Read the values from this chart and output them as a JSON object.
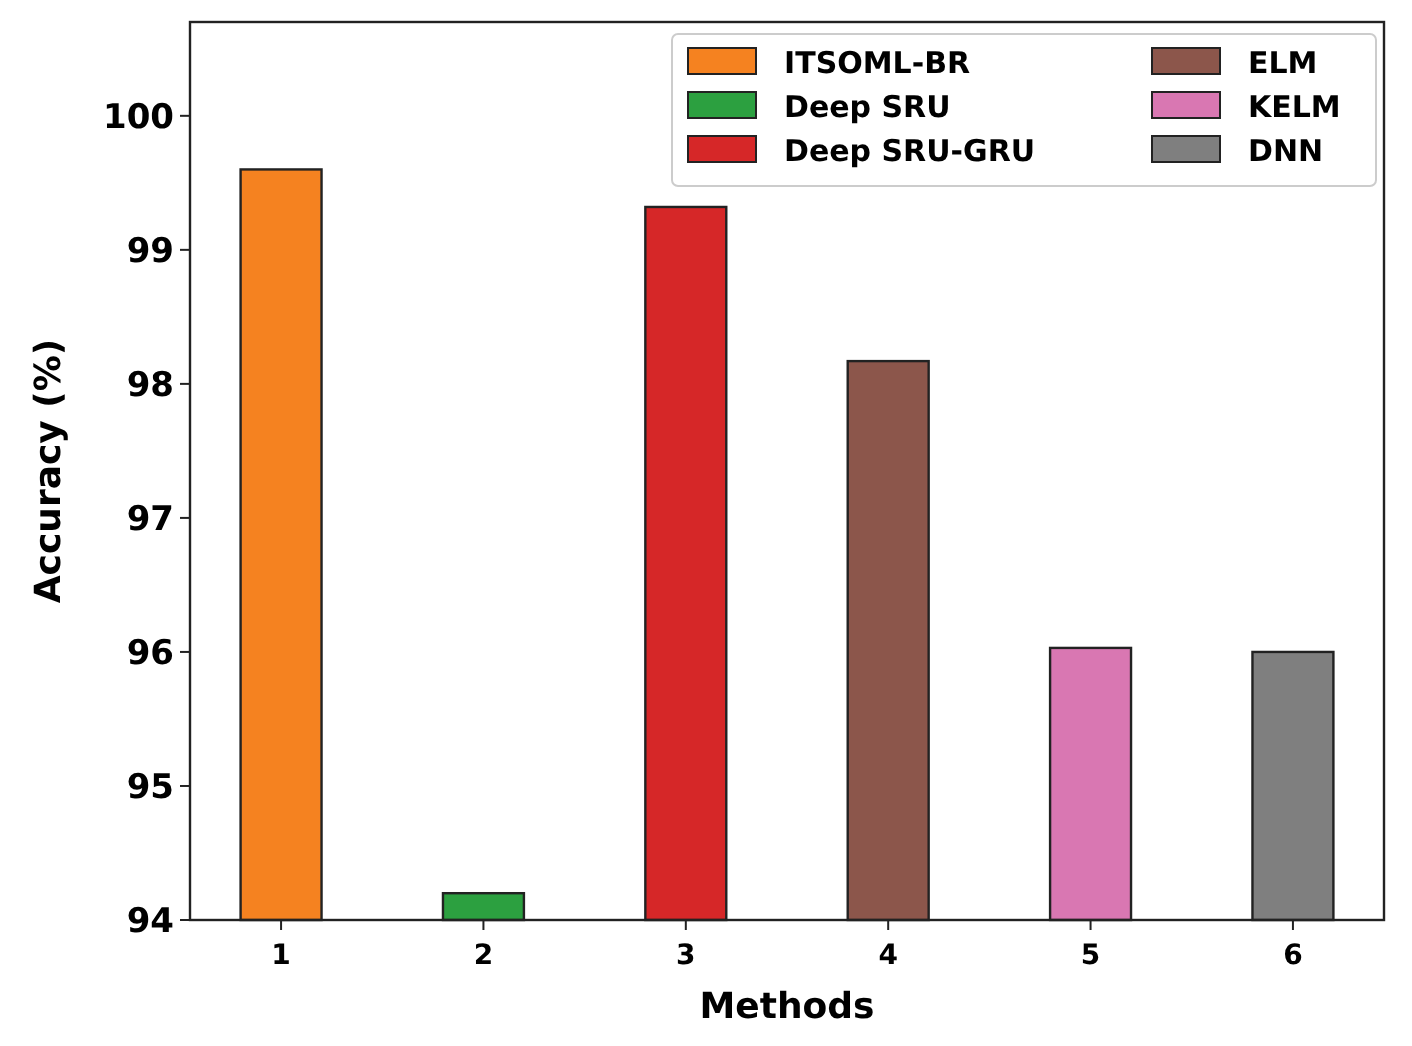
{
  "chart_data": {
    "type": "bar",
    "xlabel": "Methods",
    "ylabel": "Accuracy (%)",
    "categories": [
      "1",
      "2",
      "3",
      "4",
      "5",
      "6"
    ],
    "series": [
      {
        "name": "ITSOML-BR",
        "color": "#f58220",
        "values": [
          99.6,
          null,
          null,
          null,
          null,
          null
        ]
      },
      {
        "name": "Deep SRU",
        "color": "#2ca040",
        "values": [
          null,
          94.2,
          null,
          null,
          null,
          null
        ]
      },
      {
        "name": "Deep SRU-GRU",
        "color": "#d62728",
        "values": [
          null,
          null,
          99.32,
          null,
          null,
          null
        ]
      },
      {
        "name": "ELM",
        "color": "#8c564b",
        "values": [
          null,
          null,
          null,
          98.17,
          null,
          null
        ]
      },
      {
        "name": "KELM",
        "color": "#d977b2",
        "values": [
          null,
          null,
          null,
          null,
          96.03,
          null
        ]
      },
      {
        "name": "DNN",
        "color": "#7f7f7f",
        "values": [
          null,
          null,
          null,
          null,
          null,
          96.0
        ]
      }
    ],
    "ylim": [
      94,
      100.7
    ],
    "yticks": [
      94,
      95,
      96,
      97,
      98,
      99,
      100
    ],
    "grid": false,
    "legend": "top right"
  }
}
